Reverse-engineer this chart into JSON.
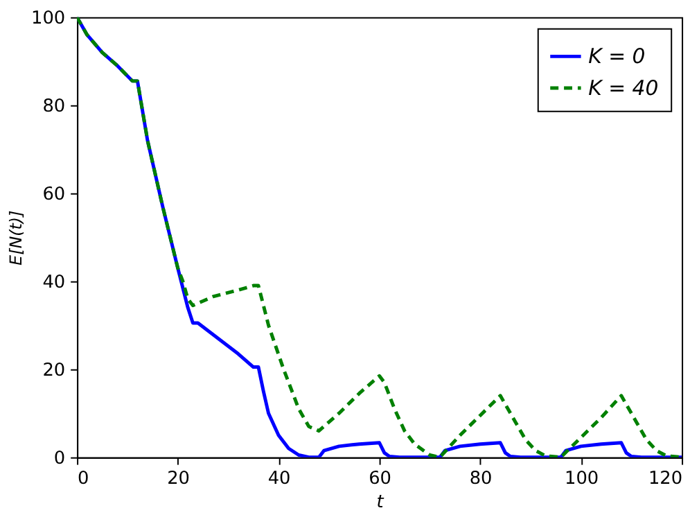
{
  "chart_data": {
    "type": "line",
    "xlabel": "t",
    "ylabel": "E[N(t)]",
    "xlim": [
      0,
      120
    ],
    "xticks": [
      0,
      20,
      40,
      60,
      80,
      100,
      120
    ],
    "ylim": [
      0,
      100
    ],
    "yticks": [
      0,
      20,
      40,
      60,
      80,
      100
    ],
    "grid": false,
    "legend": "top right",
    "marker": "none",
    "series": [
      {
        "name": "K = 0",
        "color": "#0000ff",
        "line_style": "solid",
        "x": [
          0,
          2,
          5,
          8,
          11,
          12,
          14,
          17,
          20,
          22,
          23,
          24,
          28,
          32,
          35,
          36,
          37,
          38,
          40,
          42,
          44,
          46,
          48,
          49,
          52,
          56,
          60,
          61,
          62,
          64,
          72,
          73,
          76,
          80,
          84,
          85,
          86,
          88,
          96,
          97,
          100,
          104,
          108,
          109,
          110,
          112,
          120
        ],
        "values": [
          100,
          96,
          92,
          89,
          85.5,
          85.5,
          72,
          57,
          43,
          34,
          30.5,
          30.5,
          27,
          23.5,
          20.5,
          20.5,
          15,
          10,
          5,
          2,
          0.5,
          0,
          0,
          1.5,
          2.5,
          3,
          3.3,
          1,
          0.2,
          0,
          0,
          1.5,
          2.5,
          3,
          3.3,
          1,
          0.2,
          0,
          0,
          1.5,
          2.5,
          3,
          3.3,
          1,
          0.2,
          0,
          0
        ]
      },
      {
        "name": "K = 40",
        "color": "#008000",
        "line_style": "dashed",
        "x": [
          0,
          2,
          5,
          8,
          11,
          12,
          14,
          17,
          20,
          21,
          22,
          23,
          27,
          32,
          35,
          36,
          38,
          41,
          44,
          46,
          48,
          52,
          56,
          60,
          61,
          63,
          65,
          67,
          70,
          72,
          76,
          80,
          84,
          85,
          87,
          89,
          91,
          93,
          96,
          100,
          104,
          108,
          109,
          111,
          113,
          115,
          117,
          120
        ],
        "values": [
          100,
          96,
          92,
          89,
          85.5,
          85.5,
          72,
          57,
          43,
          40,
          36,
          34.5,
          36.5,
          38,
          39,
          39,
          30,
          20,
          11,
          7,
          6,
          10,
          14.5,
          18.5,
          17,
          11,
          6,
          3,
          0.5,
          0,
          5,
          9.5,
          14,
          12,
          8,
          4,
          1.5,
          0.3,
          0,
          4.5,
          9,
          14,
          12,
          8,
          4,
          1.5,
          0.3,
          0
        ]
      }
    ]
  }
}
